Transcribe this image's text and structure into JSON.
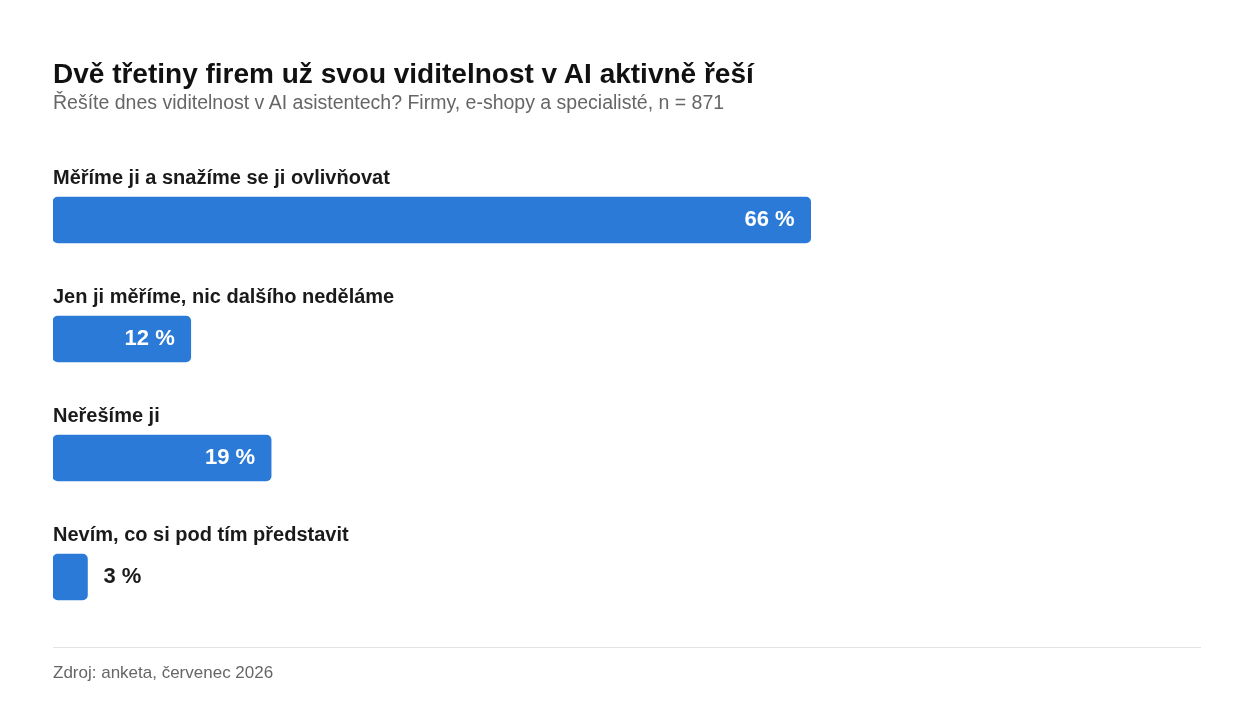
{
  "chart_data": {
    "type": "bar",
    "orientation": "horizontal",
    "title": "Dvě třetiny firem už svou viditelnost v AI aktivně řeší",
    "subtitle": "Řešíte dnes viditelnost v AI asistentech? Firmy, e-shopy a specialisté, n = 871",
    "categories": [
      "Měříme ji a snažíme se ji ovlivňovat",
      "Jen ji měříme, nic dalšího neděláme",
      "Neřešíme ji",
      "Nevím, co si pod tím představit"
    ],
    "values": [
      66,
      12,
      19,
      3
    ],
    "color": "#2b7ad8",
    "value_labels": [
      "66 %",
      "12 %",
      "19 %",
      "3 %"
    ],
    "xlim": [
      0,
      100
    ],
    "tick_labels": "y",
    "annotations": [
      "Zdroj: anketa, červenec 2026"
    ]
  }
}
